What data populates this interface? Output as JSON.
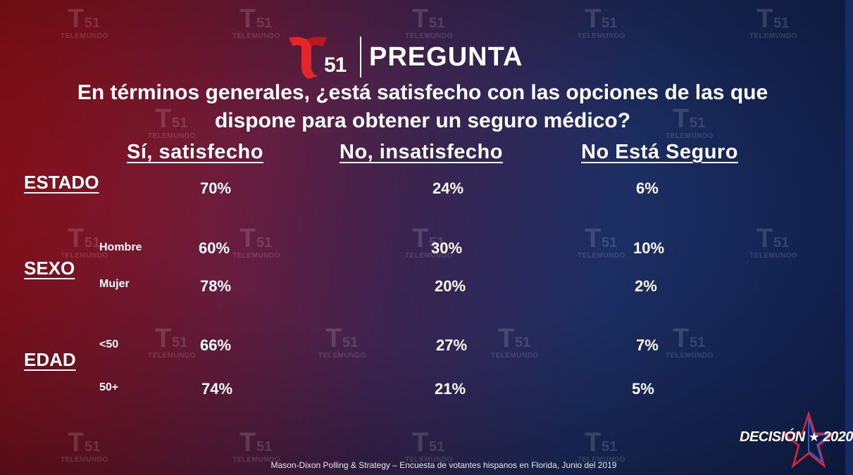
{
  "brand": {
    "channel_number": "51",
    "watermark_number": "51",
    "watermark_brand": "TELEMUNDO",
    "segment_title": "PREGUNTA"
  },
  "question": {
    "line1": "En términos generales, ¿está satisfecho con las opciones de las que",
    "line2": "dispone para obtener un seguro médico?"
  },
  "columns": [
    "Sí, satisfecho",
    "No, insatisfecho",
    "No Está Seguro"
  ],
  "groups": {
    "estado": {
      "label": "ESTADO",
      "values": [
        "70%",
        "24%",
        "6%"
      ]
    },
    "sexo": {
      "label": "SEXO",
      "rows": [
        {
          "label": "Hombre",
          "values": [
            "60%",
            "30%",
            "10%"
          ]
        },
        {
          "label": "Mujer",
          "values": [
            "78%",
            "20%",
            "2%"
          ]
        }
      ]
    },
    "edad": {
      "label": "EDAD",
      "rows": [
        {
          "label": "<50",
          "values": [
            "66%",
            "27%",
            "7%"
          ]
        },
        {
          "label": "50+",
          "values": [
            "74%",
            "21%",
            "5%"
          ]
        }
      ]
    }
  },
  "footer": {
    "source": "Mason-Dixon  Polling & Strategy – Encuesta de votantes hispanos en Florida, Junio del 2019",
    "decision_word": "DECISIÓN",
    "decision_star": "★",
    "decision_year": "2020"
  },
  "colors": {
    "background_left": "#b3141e",
    "background_right": "#162a66",
    "logo_red": "#e3262b",
    "text": "#ffffff"
  }
}
